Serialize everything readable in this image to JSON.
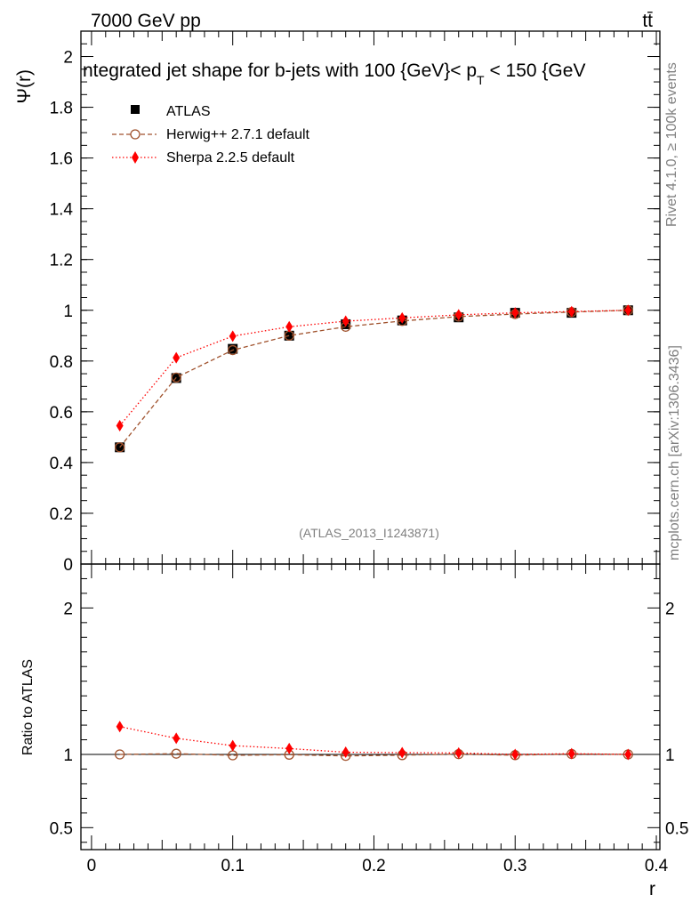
{
  "header": {
    "energy_label": "7000 GeV pp",
    "process_label": "tt̄",
    "plot_title": "ntegrated jet shape for b-jets with 100 {GeV}< p_T < 150 {GeV}",
    "title_prefix": "ntegrated jet shape for b-jets with 100 {GeV}< p",
    "title_sub": "T",
    "title_suffix": " < 150 {GeV"
  },
  "side_labels": {
    "rivet": "Rivet 4.1.0, ≥ 100k events",
    "mcplots": "mcplots.cern.ch [arXiv:1306.3436]"
  },
  "watermark": "(ATLAS_2013_I1243871)",
  "colors": {
    "atlas": "#000000",
    "herwig": "#a0522d",
    "sherpa": "#ff0000"
  },
  "chart_data": [
    {
      "type": "line",
      "panel": "main",
      "xlabel": "",
      "ylabel": "Ψ(r)",
      "xlim": [
        -0.0075,
        0.4025
      ],
      "ylim": [
        0,
        2.1
      ],
      "yticks": [
        0,
        0.2,
        0.4,
        0.6,
        0.8,
        1,
        1.2,
        1.4,
        1.6,
        1.8,
        2
      ],
      "ytick_labels": [
        "0",
        "0.2",
        "0.4",
        "0.6",
        "0.8",
        "1",
        "1.2",
        "1.4",
        "1.6",
        "1.8",
        "2"
      ],
      "legend_position": "top-left",
      "x": [
        0.02,
        0.06,
        0.1,
        0.14,
        0.18,
        0.22,
        0.26,
        0.3,
        0.34,
        0.38
      ],
      "series": [
        {
          "name": "ATLAS",
          "style": "square-marker",
          "values": [
            0.46,
            0.733,
            0.848,
            0.9,
            0.945,
            0.96,
            0.972,
            0.99,
            0.99,
            1.0
          ]
        },
        {
          "name": "Herwig++ 2.7.1 default",
          "style": "dashed-open-circle",
          "values": [
            0.46,
            0.735,
            0.843,
            0.9,
            0.935,
            0.958,
            0.975,
            0.985,
            0.993,
            1.0
          ]
        },
        {
          "name": "Sherpa 2.2.5 default",
          "style": "dotted-diamond",
          "values": [
            0.545,
            0.813,
            0.898,
            0.935,
            0.957,
            0.97,
            0.982,
            0.99,
            0.995,
            1.0
          ]
        }
      ]
    },
    {
      "type": "line",
      "panel": "ratio",
      "xlabel": "r",
      "ylabel": "Ratio to ATLAS",
      "xlim": [
        -0.0075,
        0.4025
      ],
      "ylim": [
        0.35,
        2.3
      ],
      "xticks": [
        0,
        0.1,
        0.2,
        0.3,
        0.4
      ],
      "xtick_labels": [
        "0",
        "0.1",
        "0.2",
        "0.3",
        "0.4"
      ],
      "yticks": [
        0.5,
        1,
        2
      ],
      "ytick_labels": [
        "0.5",
        "1",
        "2"
      ],
      "x": [
        0.02,
        0.06,
        0.1,
        0.14,
        0.18,
        0.22,
        0.26,
        0.3,
        0.34,
        0.38
      ],
      "series": [
        {
          "name": "Herwig++ 2.7.1 default",
          "style": "dashed-open-circle",
          "values": [
            1.0,
            1.005,
            0.994,
            0.998,
            0.99,
            0.995,
            1.002,
            0.995,
            1.003,
            1.0
          ]
        },
        {
          "name": "Sherpa 2.2.5 default",
          "style": "dotted-diamond",
          "values": [
            1.19,
            1.11,
            1.06,
            1.04,
            1.015,
            1.012,
            1.01,
            1.0,
            1.005,
            1.0
          ]
        }
      ]
    }
  ]
}
